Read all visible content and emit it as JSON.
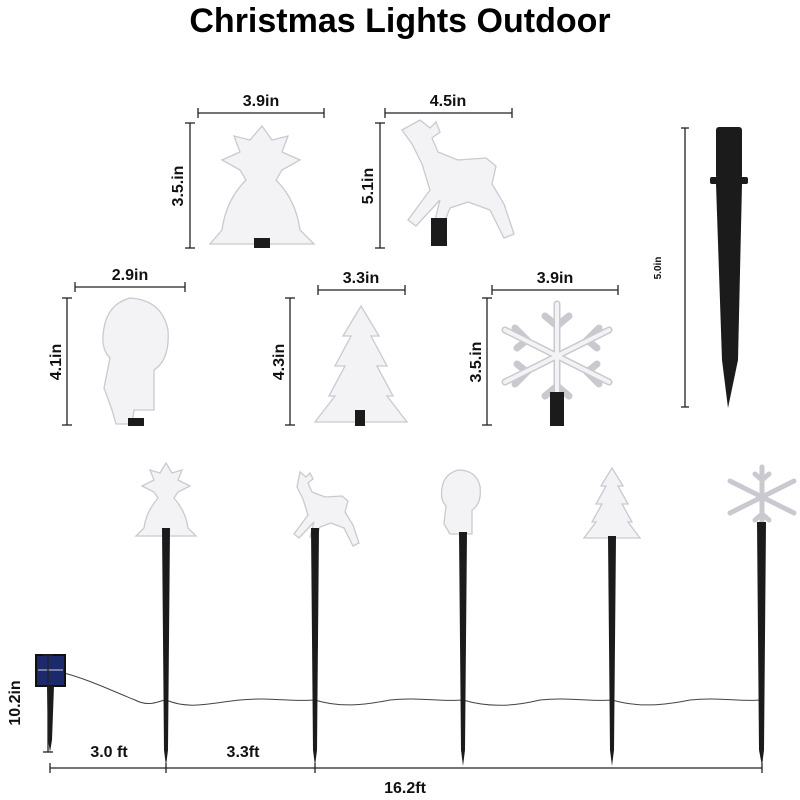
{
  "title": "Christmas Lights Outdoor",
  "ornaments": [
    {
      "name": "bell",
      "width": "3.9in",
      "height": "3.5.in"
    },
    {
      "name": "reindeer",
      "width": "4.5in",
      "height": "5.1in"
    },
    {
      "name": "santa",
      "width": "2.9in",
      "height": "4.1in"
    },
    {
      "name": "tree",
      "width": "3.3in",
      "height": "4.3in"
    },
    {
      "name": "snowflake",
      "width": "3.9in",
      "height": "3.5.in"
    }
  ],
  "stake": {
    "height": "5.0in"
  },
  "layout_dims": {
    "total_height": "10.2in",
    "panel_to_first": "3.0 ft",
    "spacing": "3.3ft",
    "total_length": "16.2ft"
  },
  "colors": {
    "ornament": "#f3f3f6",
    "stake": "#1b1b1b",
    "panel": "#1c2a6b"
  }
}
